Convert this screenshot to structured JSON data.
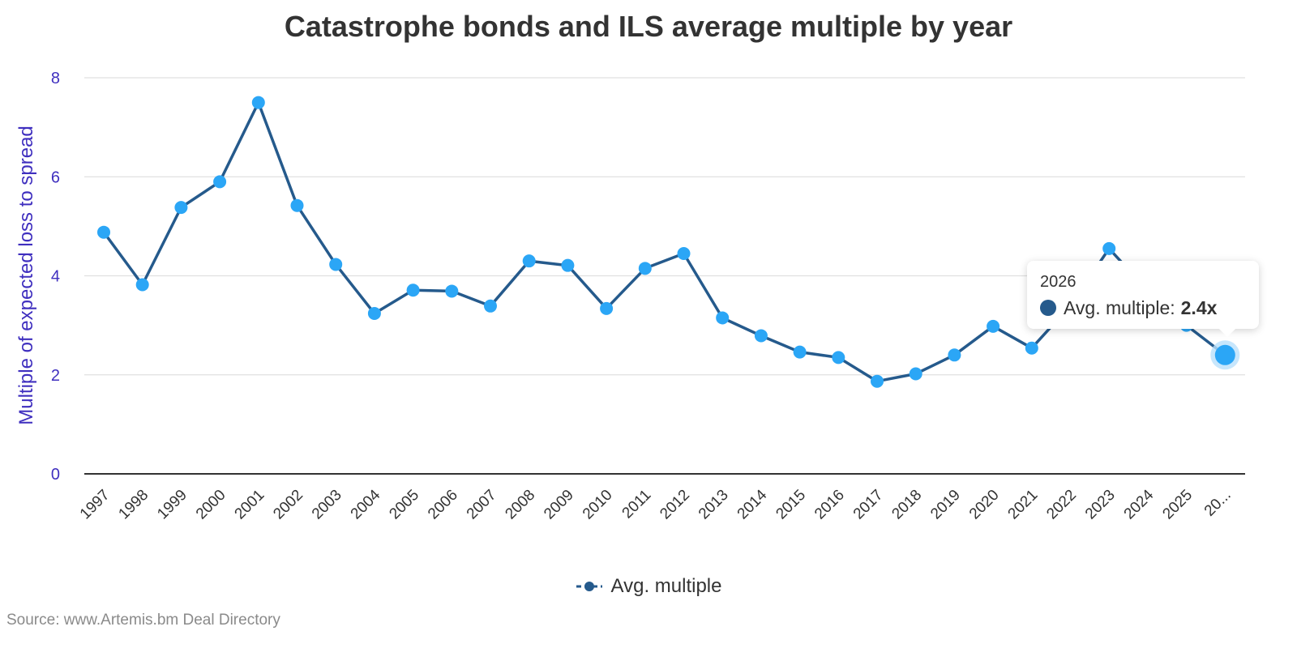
{
  "chart_data": {
    "type": "line",
    "title": "Catastrophe bonds and ILS average multiple by year",
    "ylabel": "Multiple of expected loss to spread",
    "xlabel": "",
    "ylim": [
      0,
      8
    ],
    "yticks": [
      0,
      2,
      4,
      6,
      8
    ],
    "grid": true,
    "legend_position": "bottom-center",
    "categories": [
      "1997",
      "1998",
      "1999",
      "2000",
      "2001",
      "2002",
      "2003",
      "2004",
      "2005",
      "2006",
      "2007",
      "2008",
      "2009",
      "2010",
      "2011",
      "2012",
      "2013",
      "2014",
      "2015",
      "2016",
      "2017",
      "2018",
      "2019",
      "2020",
      "2021",
      "2022",
      "2023",
      "2024",
      "2025",
      "20..."
    ],
    "series": [
      {
        "name": "Avg. multiple",
        "values": [
          4.88,
          3.82,
          5.38,
          5.9,
          7.5,
          5.42,
          4.23,
          3.24,
          3.71,
          3.69,
          3.39,
          4.3,
          4.21,
          3.34,
          4.15,
          4.45,
          3.15,
          2.79,
          2.46,
          2.35,
          1.87,
          2.02,
          2.4,
          2.98,
          2.54,
          3.4,
          4.55,
          3.7,
          3.0,
          2.4
        ]
      }
    ],
    "colors": {
      "line": "#255a8c",
      "marker": "#2ba6f6",
      "hover_halo": "#b9e0fb",
      "axis_label": "#3f2fbf",
      "grid": "#e0e0e0",
      "axis_line": "#333333"
    },
    "tooltip": {
      "year": "2026",
      "label": "Avg. multiple:",
      "value": "2.4x",
      "active_index": 29
    },
    "source": "Source: www.Artemis.bm Deal Directory"
  }
}
